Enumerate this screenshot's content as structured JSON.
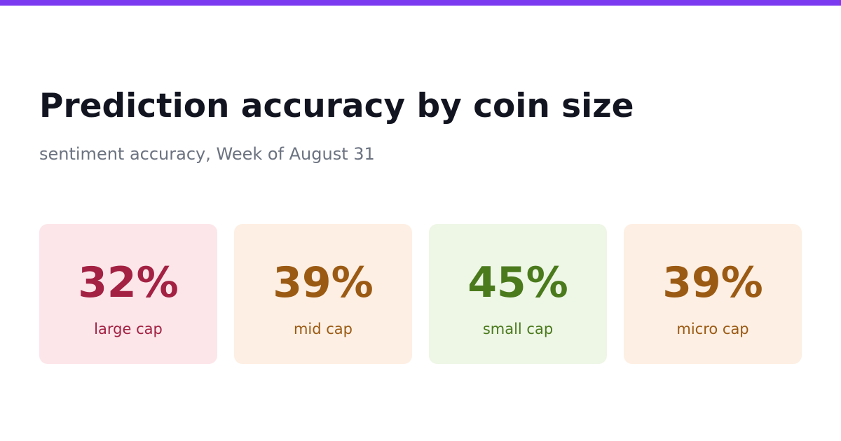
{
  "header": {
    "title": "Prediction accuracy by coin size",
    "subtitle": "sentiment accuracy, Week of August 31"
  },
  "cards": [
    {
      "value": "32%",
      "label": "large cap"
    },
    {
      "value": "39%",
      "label": "mid cap"
    },
    {
      "value": "45%",
      "label": "small cap"
    },
    {
      "value": "39%",
      "label": "micro cap"
    }
  ]
}
